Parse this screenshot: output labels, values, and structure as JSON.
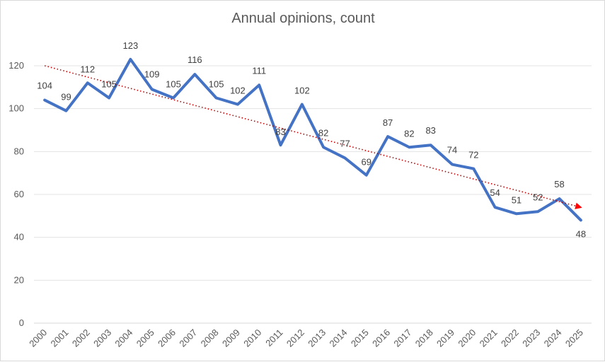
{
  "chart_data": {
    "type": "line",
    "title": "Annual opinions, count",
    "xlabel": "",
    "ylabel": "",
    "categories": [
      "2000",
      "2001",
      "2002",
      "2003",
      "2004",
      "2005",
      "2006",
      "2007",
      "2008",
      "2009",
      "2010",
      "2011",
      "2012",
      "2013",
      "2014",
      "2015",
      "2016",
      "2017",
      "2018",
      "2019",
      "2020",
      "2021",
      "2022",
      "2023",
      "2024",
      "2025"
    ],
    "series": [
      {
        "name": "Annual opinions",
        "color": "#4472C4",
        "values": [
          104,
          99,
          112,
          105,
          123,
          109,
          105,
          116,
          105,
          102,
          111,
          83,
          102,
          82,
          77,
          69,
          87,
          82,
          83,
          74,
          72,
          54,
          51,
          52,
          58,
          48
        ]
      }
    ],
    "trendline": {
      "type": "linear",
      "color": "#C00000",
      "style": "dotted",
      "start": 120,
      "end": 54
    },
    "ylim": [
      0,
      130
    ],
    "yticks": [
      0,
      20,
      40,
      60,
      80,
      100,
      120
    ],
    "grid": true,
    "legend": "none"
  }
}
